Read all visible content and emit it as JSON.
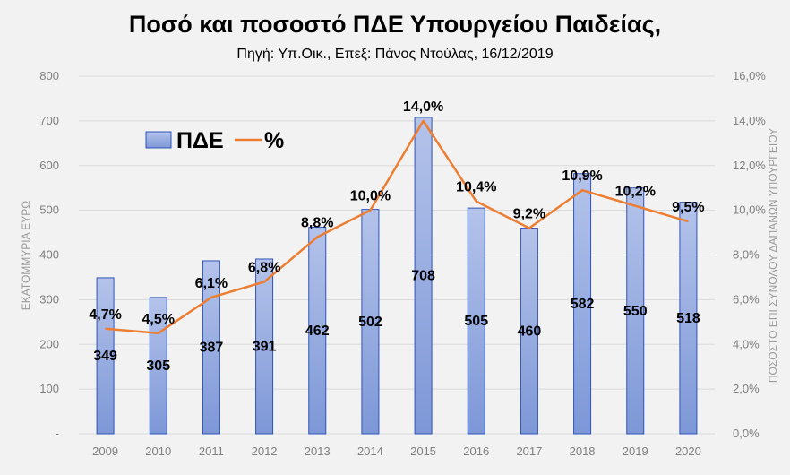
{
  "header": {
    "title": "Ποσό και ποσοστό ΠΔΕ Υπουργείου Παιδείας,",
    "subtitle": "Πηγή: Υπ.Οικ., Επεξ: Πάνος Ντούλας, 16/12/2019"
  },
  "colors": {
    "bar_fill_top": "#b4c3ea",
    "bar_fill_bottom": "#7d97d7",
    "bar_stroke": "#2f54b8",
    "line": "#ed7d31",
    "grid": "#d9d9d9",
    "background": "#f2f2f2"
  },
  "chart_data": {
    "type": "bar",
    "title": "Ποσό και ποσοστό ΠΔΕ Υπουργείου Παιδείας,",
    "subtitle": "Πηγή: Υπ.Οικ., Επεξ: Πάνος Ντούλας, 16/12/2019",
    "categories": [
      "2009",
      "2010",
      "2011",
      "2012",
      "2013",
      "2014",
      "2015",
      "2016",
      "2017",
      "2018",
      "2019",
      "2020"
    ],
    "series": [
      {
        "name": "ΠΔΕ",
        "type": "bar",
        "axis": "left",
        "values": [
          349,
          305,
          387,
          391,
          462,
          502,
          708,
          505,
          460,
          582,
          550,
          518
        ],
        "labels": [
          "349",
          "305",
          "387",
          "391",
          "462",
          "502",
          "708",
          "505",
          "460",
          "582",
          "550",
          "518"
        ]
      },
      {
        "name": "%",
        "type": "line",
        "axis": "right",
        "values": [
          4.7,
          4.5,
          6.1,
          6.8,
          8.8,
          10.0,
          14.0,
          10.4,
          9.2,
          10.9,
          10.2,
          9.5
        ],
        "labels": [
          "4,7%",
          "4,5%",
          "6,1%",
          "6,8%",
          "8,8%",
          "10,0%",
          "14,0%",
          "10,4%",
          "9,2%",
          "10,9%",
          "10,2%",
          "9,5%"
        ]
      }
    ],
    "ylabel": "ΕΚΑΤΟΜΜΥΡΙΑ ΕΥΡΩ",
    "y2label": "ΠΟΣΟΣΤΟ ΕΠΙ ΣΥΝΟΛΟΥ ΔΑΠΑΝΩΝ ΥΠΟΥΡΓΕΙΟΥ",
    "ylim": [
      0,
      800
    ],
    "y2lim": [
      0,
      16
    ],
    "yticks": [
      "-",
      "100",
      "200",
      "300",
      "400",
      "500",
      "600",
      "700",
      "800"
    ],
    "y2ticks": [
      "0,0%",
      "2,0%",
      "4,0%",
      "6,0%",
      "8,0%",
      "10,0%",
      "12,0%",
      "14,0%",
      "16,0%"
    ],
    "grid": true,
    "legend_position": "top-left"
  }
}
